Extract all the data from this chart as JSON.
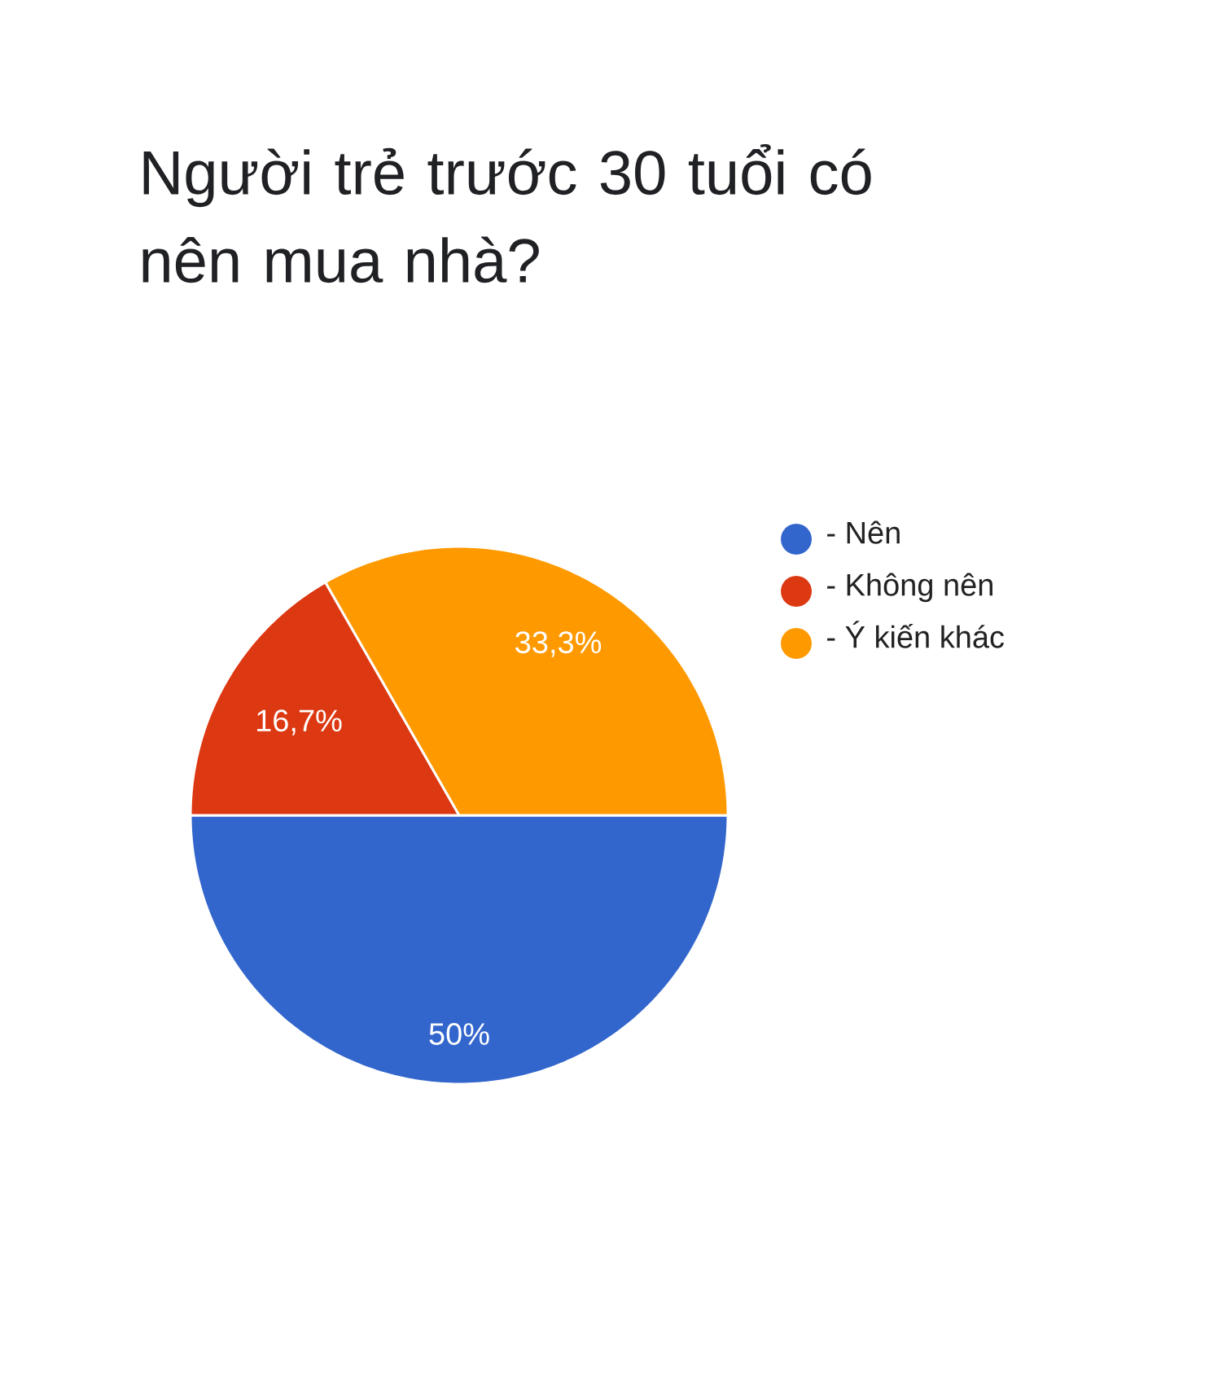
{
  "chart_data": {
    "type": "pie",
    "title": "Người trẻ trước 30 tuổi có nên mua nhà?",
    "categories": [
      "- Nên",
      "- Không nên",
      "- Ý kiến khác"
    ],
    "values": [
      50,
      16.7,
      33.3
    ],
    "colors": [
      "#3366cc",
      "#dc3912",
      "#ff9900"
    ],
    "value_labels": [
      "50%",
      "16,7%",
      "33,3%"
    ],
    "legend": "right"
  }
}
